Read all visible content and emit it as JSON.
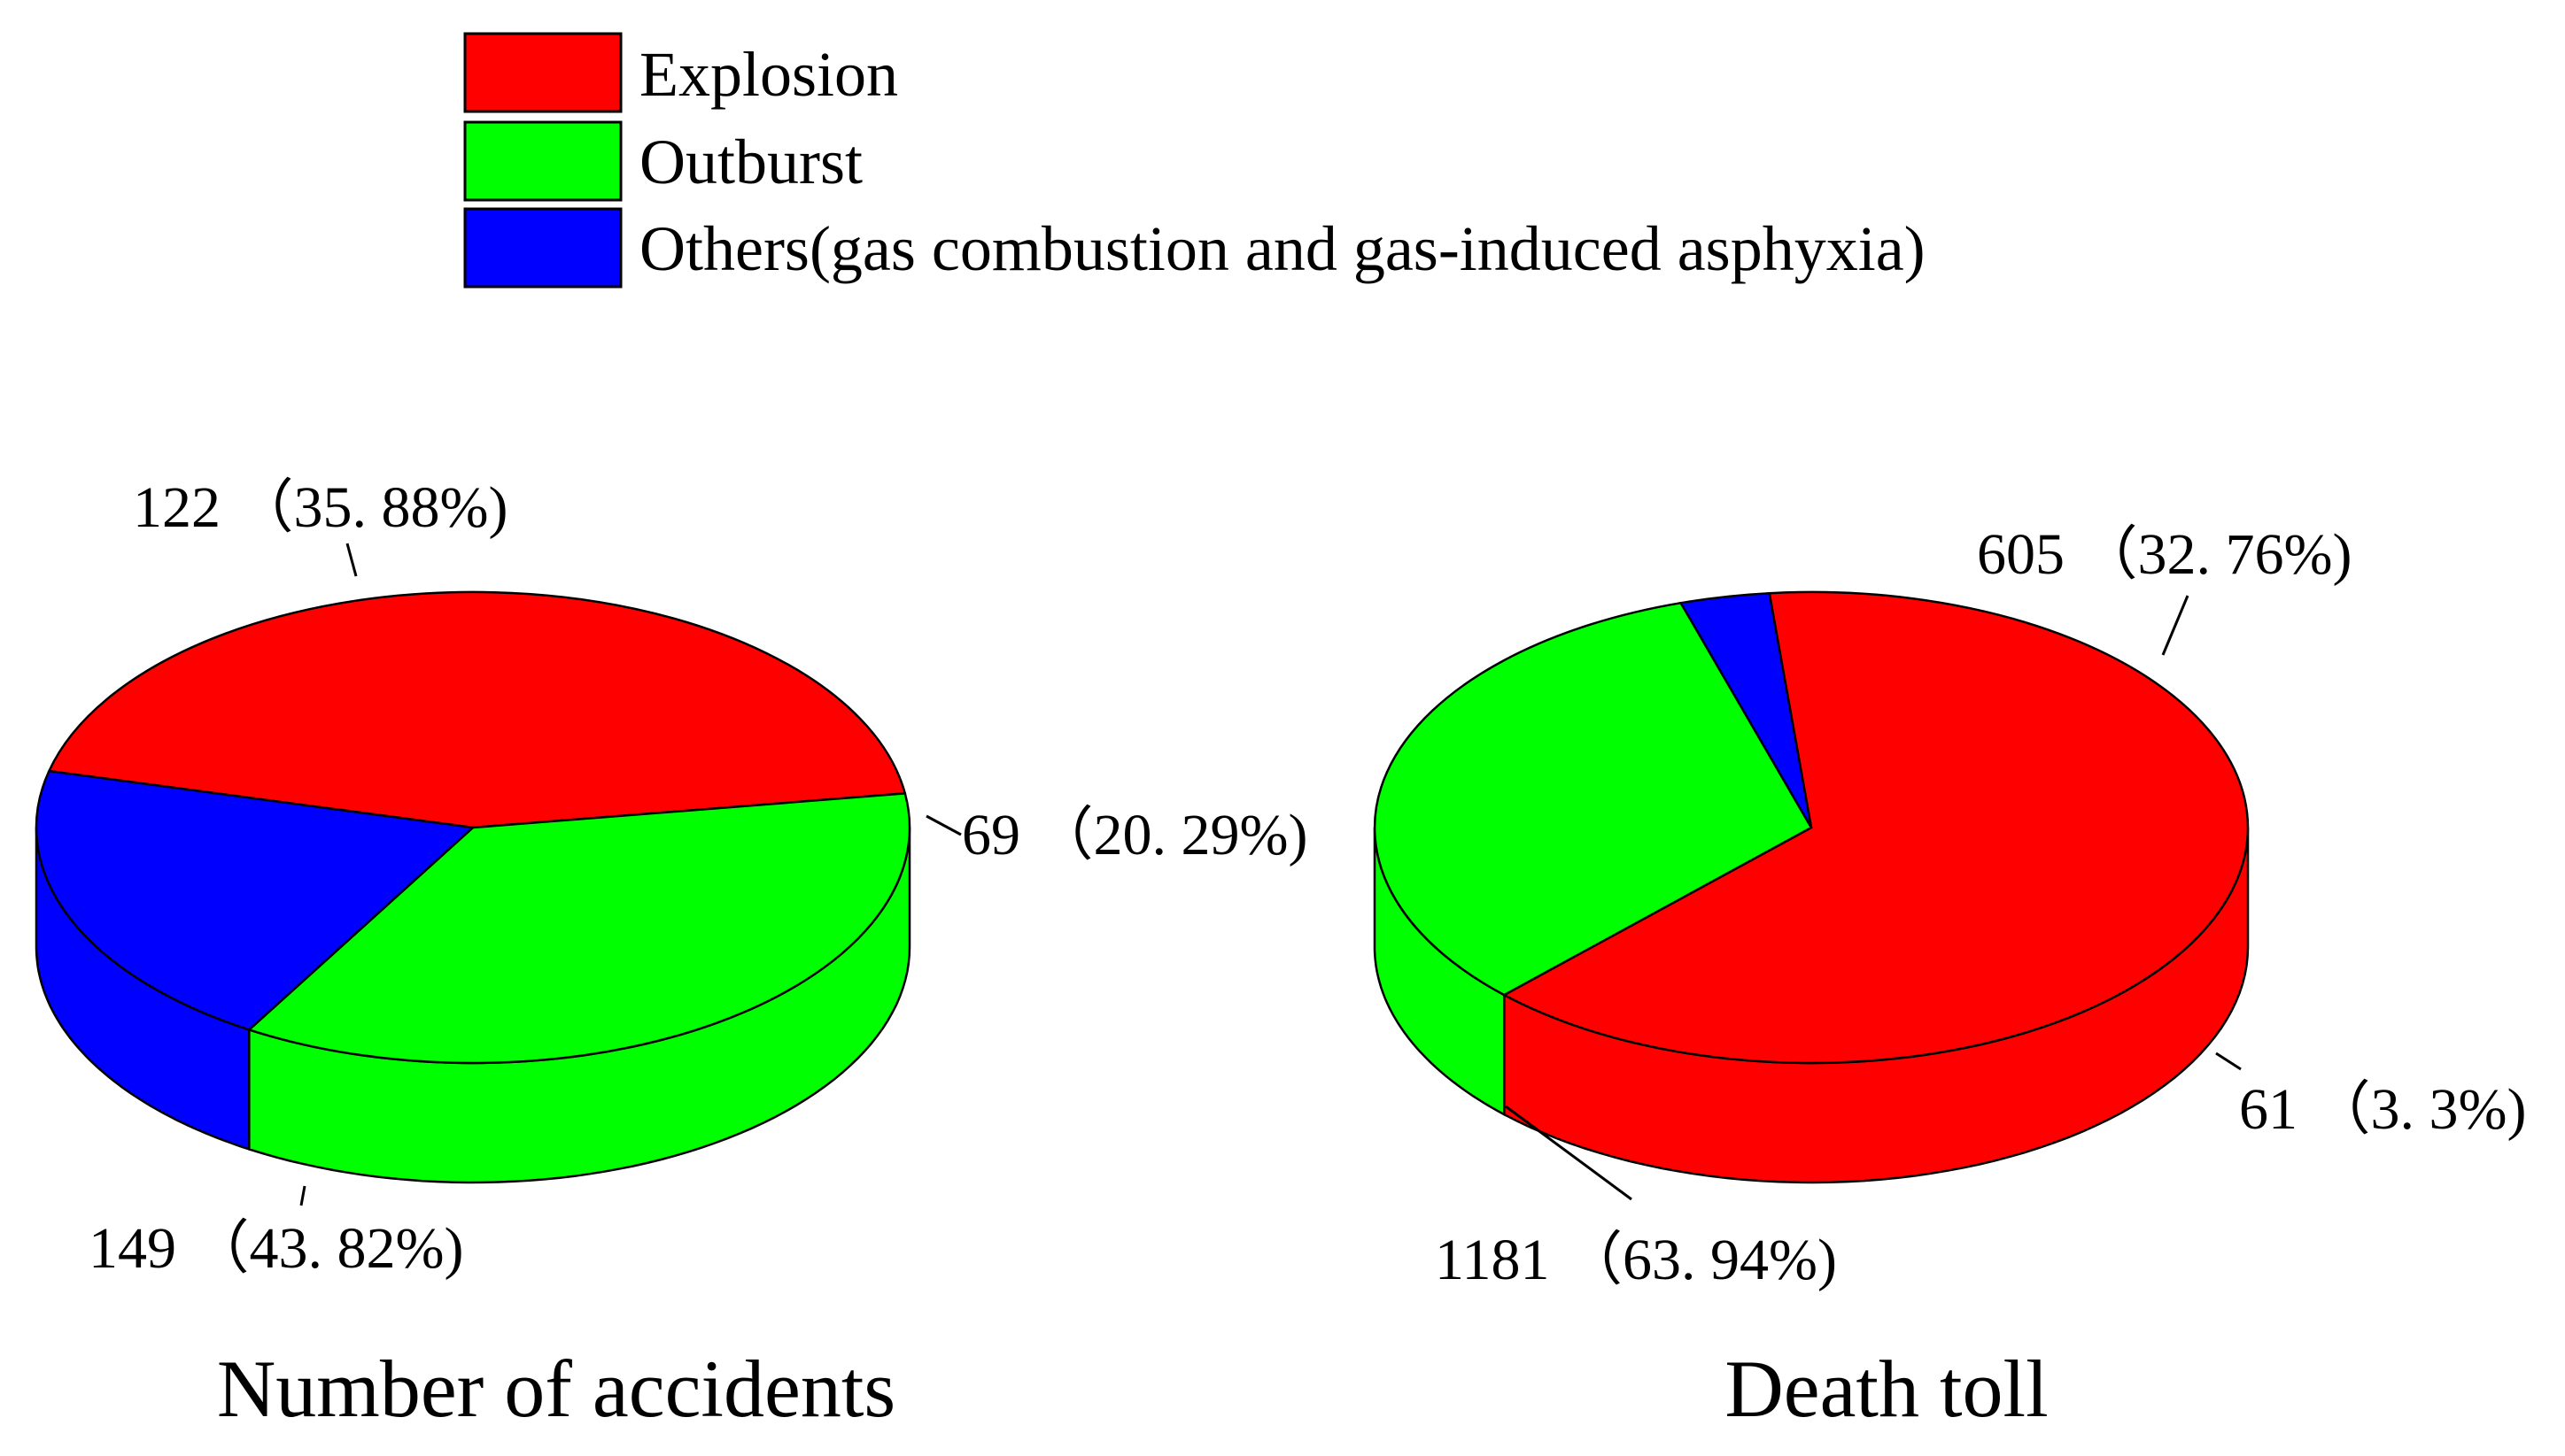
{
  "legend": [
    {
      "label": "Explosion",
      "color": "#ff0000"
    },
    {
      "label": "Outburst",
      "color": "#00ff00"
    },
    {
      "label": "Others(gas combustion and gas-induced asphyxia)",
      "color": "#0000ff"
    }
  ],
  "chart_data": [
    {
      "type": "pie",
      "title": "Number of accidents",
      "style": "3d",
      "slices": [
        {
          "name": "Explosion",
          "value": 149,
          "percent": 43.82,
          "label": "149 （43. 82%)",
          "color": "#ff0000"
        },
        {
          "name": "Outburst",
          "value": 122,
          "percent": 35.88,
          "label": "122 （35. 88%)",
          "color": "#00ff00"
        },
        {
          "name": "Others(gas combustion and gas-induced asphyxia)",
          "value": 69,
          "percent": 20.29,
          "label": "69 （20. 29%)",
          "color": "#0000ff"
        }
      ]
    },
    {
      "type": "pie",
      "title": "Death toll",
      "style": "3d",
      "slices": [
        {
          "name": "Explosion",
          "value": 1181,
          "percent": 63.94,
          "label": "1181 （63. 94%)",
          "color": "#ff0000"
        },
        {
          "name": "Outburst",
          "value": 605,
          "percent": 32.76,
          "label": "605 （32. 76%)",
          "color": "#00ff00"
        },
        {
          "name": "Others(gas combustion and gas-induced asphyxia)",
          "value": 61,
          "percent": 3.3,
          "label": "61 （3. 3%)",
          "color": "#0000ff"
        }
      ]
    }
  ]
}
